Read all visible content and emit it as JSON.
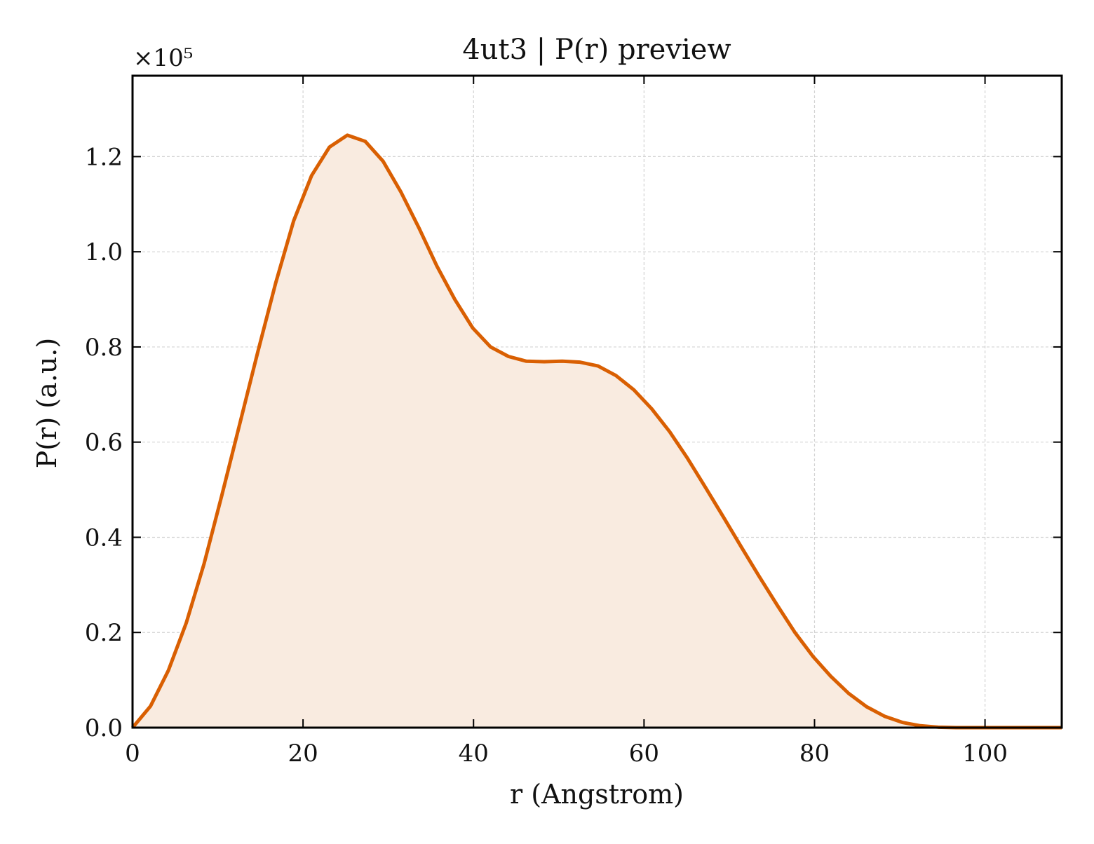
{
  "chart_data": {
    "type": "area",
    "title": "4ut3 | P(r) preview",
    "xlabel": "r (Angstrom)",
    "ylabel": "P(r) (a.u.)",
    "y_multiplier_label": "×10⁵",
    "xlim": [
      0,
      109
    ],
    "ylim": [
      0,
      1.37
    ],
    "x_ticks": [
      0,
      20,
      40,
      60,
      80,
      100
    ],
    "x_tick_labels": [
      "0",
      "20",
      "40",
      "60",
      "80",
      "100"
    ],
    "y_ticks": [
      0.0,
      0.2,
      0.4,
      0.6,
      0.8,
      1.0,
      1.2
    ],
    "y_tick_labels": [
      "0.0",
      "0.2",
      "0.4",
      "0.6",
      "0.8",
      "1.0",
      "1.2"
    ],
    "grid": true,
    "legend": "none",
    "colors": {
      "line": "#d95f02",
      "fill": "#f9ebe0",
      "grid": "#d3d3d3",
      "axis": "#000000"
    },
    "series": [
      {
        "x": [
          0,
          2.1,
          4.2,
          6.3,
          8.4,
          10.5,
          12.6,
          14.7,
          16.8,
          18.9,
          21.0,
          23.1,
          25.2,
          27.3,
          29.4,
          31.5,
          33.6,
          35.7,
          37.8,
          39.9,
          42.0,
          44.1,
          46.2,
          48.3,
          50.4,
          52.5,
          54.6,
          56.7,
          58.8,
          60.9,
          63.0,
          65.1,
          67.2,
          69.3,
          71.4,
          73.5,
          75.6,
          77.7,
          79.8,
          81.9,
          84.0,
          86.1,
          88.2,
          90.3,
          92.4,
          94.5,
          96.6,
          98.7,
          100.8,
          102.9,
          105.0,
          107.1,
          109.0
        ],
        "y": [
          0.0,
          0.045,
          0.12,
          0.22,
          0.345,
          0.49,
          0.64,
          0.79,
          0.935,
          1.065,
          1.16,
          1.22,
          1.245,
          1.232,
          1.19,
          1.125,
          1.05,
          0.97,
          0.9,
          0.84,
          0.8,
          0.78,
          0.77,
          0.769,
          0.77,
          0.768,
          0.76,
          0.74,
          0.71,
          0.67,
          0.622,
          0.566,
          0.505,
          0.443,
          0.38,
          0.318,
          0.258,
          0.2,
          0.15,
          0.108,
          0.072,
          0.044,
          0.024,
          0.011,
          0.004,
          0.001,
          0.0,
          0.0,
          0.0,
          0.0,
          0.0,
          0.0,
          0.0
        ]
      }
    ]
  }
}
